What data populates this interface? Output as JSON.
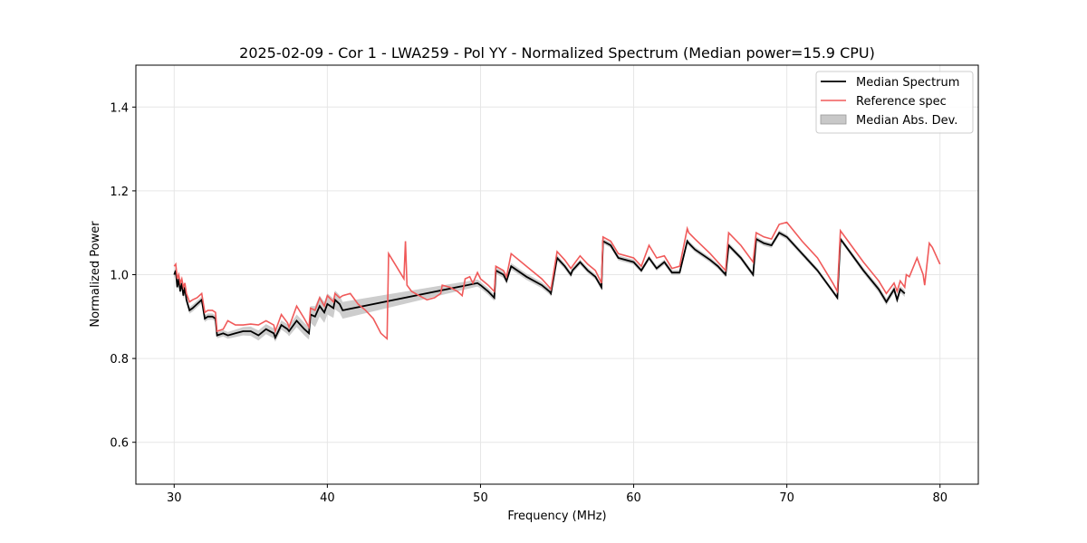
{
  "chart_data": {
    "type": "line",
    "title": "2025-02-09 - Cor 1 - LWA259 - Pol YY - Normalized Spectrum (Median power=15.9 CPU)",
    "xlabel": "Frequency (MHz)",
    "ylabel": "Normalized Power",
    "xlim": [
      27.5,
      82.5
    ],
    "ylim": [
      0.5,
      1.5
    ],
    "xticks": [
      30,
      40,
      50,
      60,
      70,
      80
    ],
    "yticks": [
      0.6,
      0.8,
      1.0,
      1.2,
      1.4
    ],
    "xtick_labels": [
      "30",
      "40",
      "50",
      "60",
      "70",
      "80"
    ],
    "ytick_labels": [
      "0.6",
      "0.8",
      "1.0",
      "1.2",
      "1.4"
    ],
    "grid": true,
    "legend_position": "top-right",
    "legend": {
      "median_label": "Median Spectrum",
      "reference_label": "Reference spec",
      "mad_label": "Median Abs. Dev."
    },
    "colors": {
      "median": "#000000",
      "reference": "#f05a5a",
      "mad_fill": "#c8c8c8",
      "grid": "#e6e6e6"
    },
    "series": [
      {
        "name": "Median Spectrum",
        "x": [
          30.0,
          30.1,
          30.2,
          30.3,
          30.4,
          30.5,
          30.6,
          30.7,
          30.8,
          31.0,
          31.2,
          31.5,
          31.8,
          32.0,
          32.2,
          32.5,
          32.7,
          32.8,
          33.2,
          33.5,
          34.0,
          34.5,
          35.0,
          35.5,
          36.0,
          36.5,
          36.6,
          37.0,
          37.4,
          37.5,
          38.0,
          38.5,
          38.8,
          38.9,
          39.2,
          39.5,
          39.8,
          40.0,
          40.4,
          40.5,
          40.8,
          41.0,
          49.8,
          50.0,
          50.5,
          50.9,
          51.0,
          51.5,
          51.7,
          52.0,
          53.0,
          54.0,
          54.5,
          54.6,
          55.0,
          55.5,
          55.9,
          56.0,
          56.5,
          57.0,
          57.5,
          57.9,
          58.0,
          58.5,
          59.0,
          60.0,
          60.5,
          61.0,
          61.5,
          62.0,
          62.5,
          63.0,
          63.5,
          63.6,
          64.0,
          65.0,
          65.5,
          66.0,
          66.2,
          67.0,
          67.8,
          68.0,
          68.5,
          69.0,
          69.5,
          70.0,
          71.0,
          72.0,
          73.0,
          73.3,
          73.5,
          74.0,
          75.0,
          76.0,
          76.5,
          77.0,
          77.2,
          77.4,
          77.7
        ],
        "values": [
          1.0,
          1.01,
          0.97,
          0.99,
          0.96,
          0.98,
          0.95,
          0.97,
          0.94,
          0.915,
          0.92,
          0.93,
          0.94,
          0.895,
          0.9,
          0.9,
          0.895,
          0.855,
          0.86,
          0.855,
          0.86,
          0.865,
          0.865,
          0.855,
          0.87,
          0.86,
          0.85,
          0.88,
          0.87,
          0.865,
          0.89,
          0.87,
          0.86,
          0.905,
          0.9,
          0.925,
          0.91,
          0.93,
          0.92,
          0.94,
          0.93,
          0.915,
          0.98,
          0.975,
          0.96,
          0.945,
          1.01,
          1.0,
          0.985,
          1.02,
          0.995,
          0.975,
          0.96,
          0.955,
          1.04,
          1.02,
          1.0,
          1.01,
          1.03,
          1.01,
          0.995,
          0.97,
          1.08,
          1.07,
          1.04,
          1.03,
          1.01,
          1.04,
          1.015,
          1.03,
          1.005,
          1.005,
          1.08,
          1.075,
          1.06,
          1.035,
          1.02,
          1.0,
          1.07,
          1.04,
          1.0,
          1.085,
          1.075,
          1.07,
          1.1,
          1.09,
          1.05,
          1.01,
          0.96,
          0.945,
          1.085,
          1.06,
          1.01,
          0.965,
          0.935,
          0.965,
          0.94,
          0.965,
          0.955
        ]
      },
      {
        "name": "Reference spec",
        "x": [
          30.0,
          30.1,
          30.2,
          30.3,
          30.4,
          30.5,
          30.6,
          30.7,
          30.8,
          31.0,
          31.2,
          31.5,
          31.8,
          32.0,
          32.2,
          32.5,
          32.7,
          32.8,
          33.2,
          33.5,
          34.0,
          34.5,
          35.0,
          35.5,
          36.0,
          36.5,
          36.6,
          37.0,
          37.4,
          37.5,
          38.0,
          38.5,
          38.8,
          38.9,
          39.2,
          39.5,
          39.8,
          40.0,
          40.4,
          40.5,
          40.8,
          41.0,
          41.5,
          42.0,
          42.5,
          43.0,
          43.5,
          43.9,
          44.0,
          44.5,
          45.0,
          45.1,
          45.2,
          45.5,
          46.0,
          46.5,
          47.0,
          47.4,
          47.5,
          48.0,
          48.5,
          48.8,
          49.0,
          49.3,
          49.5,
          49.8,
          50.0,
          50.5,
          50.9,
          51.0,
          51.5,
          51.7,
          52.0,
          53.0,
          54.0,
          54.5,
          54.6,
          55.0,
          55.5,
          55.9,
          56.0,
          56.5,
          57.0,
          57.5,
          57.9,
          58.0,
          58.5,
          59.0,
          60.0,
          60.5,
          61.0,
          61.5,
          62.0,
          62.5,
          63.0,
          63.5,
          63.6,
          64.0,
          65.0,
          65.5,
          66.0,
          66.2,
          67.0,
          67.8,
          68.0,
          68.5,
          69.0,
          69.5,
          70.0,
          71.0,
          72.0,
          73.0,
          73.3,
          73.5,
          74.0,
          75.0,
          76.0,
          76.5,
          77.0,
          77.2,
          77.4,
          77.7,
          77.8,
          78.0,
          78.5,
          78.9,
          79.0,
          79.3,
          79.5,
          80.0
        ],
        "values": [
          1.02,
          1.025,
          0.99,
          1.0,
          0.98,
          0.99,
          0.97,
          0.98,
          0.955,
          0.935,
          0.94,
          0.945,
          0.955,
          0.91,
          0.915,
          0.915,
          0.91,
          0.865,
          0.87,
          0.89,
          0.88,
          0.88,
          0.882,
          0.88,
          0.89,
          0.88,
          0.865,
          0.905,
          0.885,
          0.875,
          0.925,
          0.895,
          0.875,
          0.92,
          0.915,
          0.945,
          0.925,
          0.95,
          0.935,
          0.955,
          0.945,
          0.95,
          0.955,
          0.93,
          0.915,
          0.895,
          0.86,
          0.847,
          1.05,
          1.02,
          0.99,
          1.08,
          0.975,
          0.96,
          0.95,
          0.94,
          0.945,
          0.955,
          0.975,
          0.97,
          0.96,
          0.95,
          0.99,
          0.995,
          0.98,
          1.005,
          0.99,
          0.975,
          0.96,
          1.02,
          1.01,
          0.995,
          1.05,
          1.02,
          0.99,
          0.97,
          0.965,
          1.055,
          1.035,
          1.015,
          1.02,
          1.045,
          1.025,
          1.01,
          0.98,
          1.09,
          1.08,
          1.05,
          1.04,
          1.02,
          1.07,
          1.04,
          1.045,
          1.015,
          1.02,
          1.11,
          1.1,
          1.085,
          1.05,
          1.03,
          1.01,
          1.1,
          1.07,
          1.03,
          1.1,
          1.09,
          1.085,
          1.12,
          1.125,
          1.08,
          1.04,
          0.98,
          0.96,
          1.105,
          1.08,
          1.03,
          0.985,
          0.955,
          0.98,
          0.96,
          0.985,
          0.97,
          1.0,
          0.995,
          1.04,
          1.0,
          0.975,
          1.075,
          1.065,
          1.025
        ]
      }
    ],
    "mad_band": {
      "x": [
        30.0,
        31.0,
        32.0,
        32.8,
        33.5,
        34.5,
        35.5,
        36.5,
        36.6,
        37.5,
        38.0,
        38.5,
        38.8,
        39.0,
        40.0,
        41.0,
        50.0,
        55.0,
        58.0,
        60.0,
        63.5,
        66.0,
        68.0,
        70.0,
        73.3,
        73.5,
        76.5,
        77.7
      ],
      "halfwidth": [
        0.008,
        0.008,
        0.008,
        0.007,
        0.008,
        0.01,
        0.012,
        0.012,
        0.01,
        0.012,
        0.015,
        0.015,
        0.015,
        0.025,
        0.025,
        0.02,
        0.008,
        0.007,
        0.006,
        0.006,
        0.006,
        0.006,
        0.006,
        0.006,
        0.005,
        0.005,
        0.008,
        0.008
      ]
    }
  }
}
